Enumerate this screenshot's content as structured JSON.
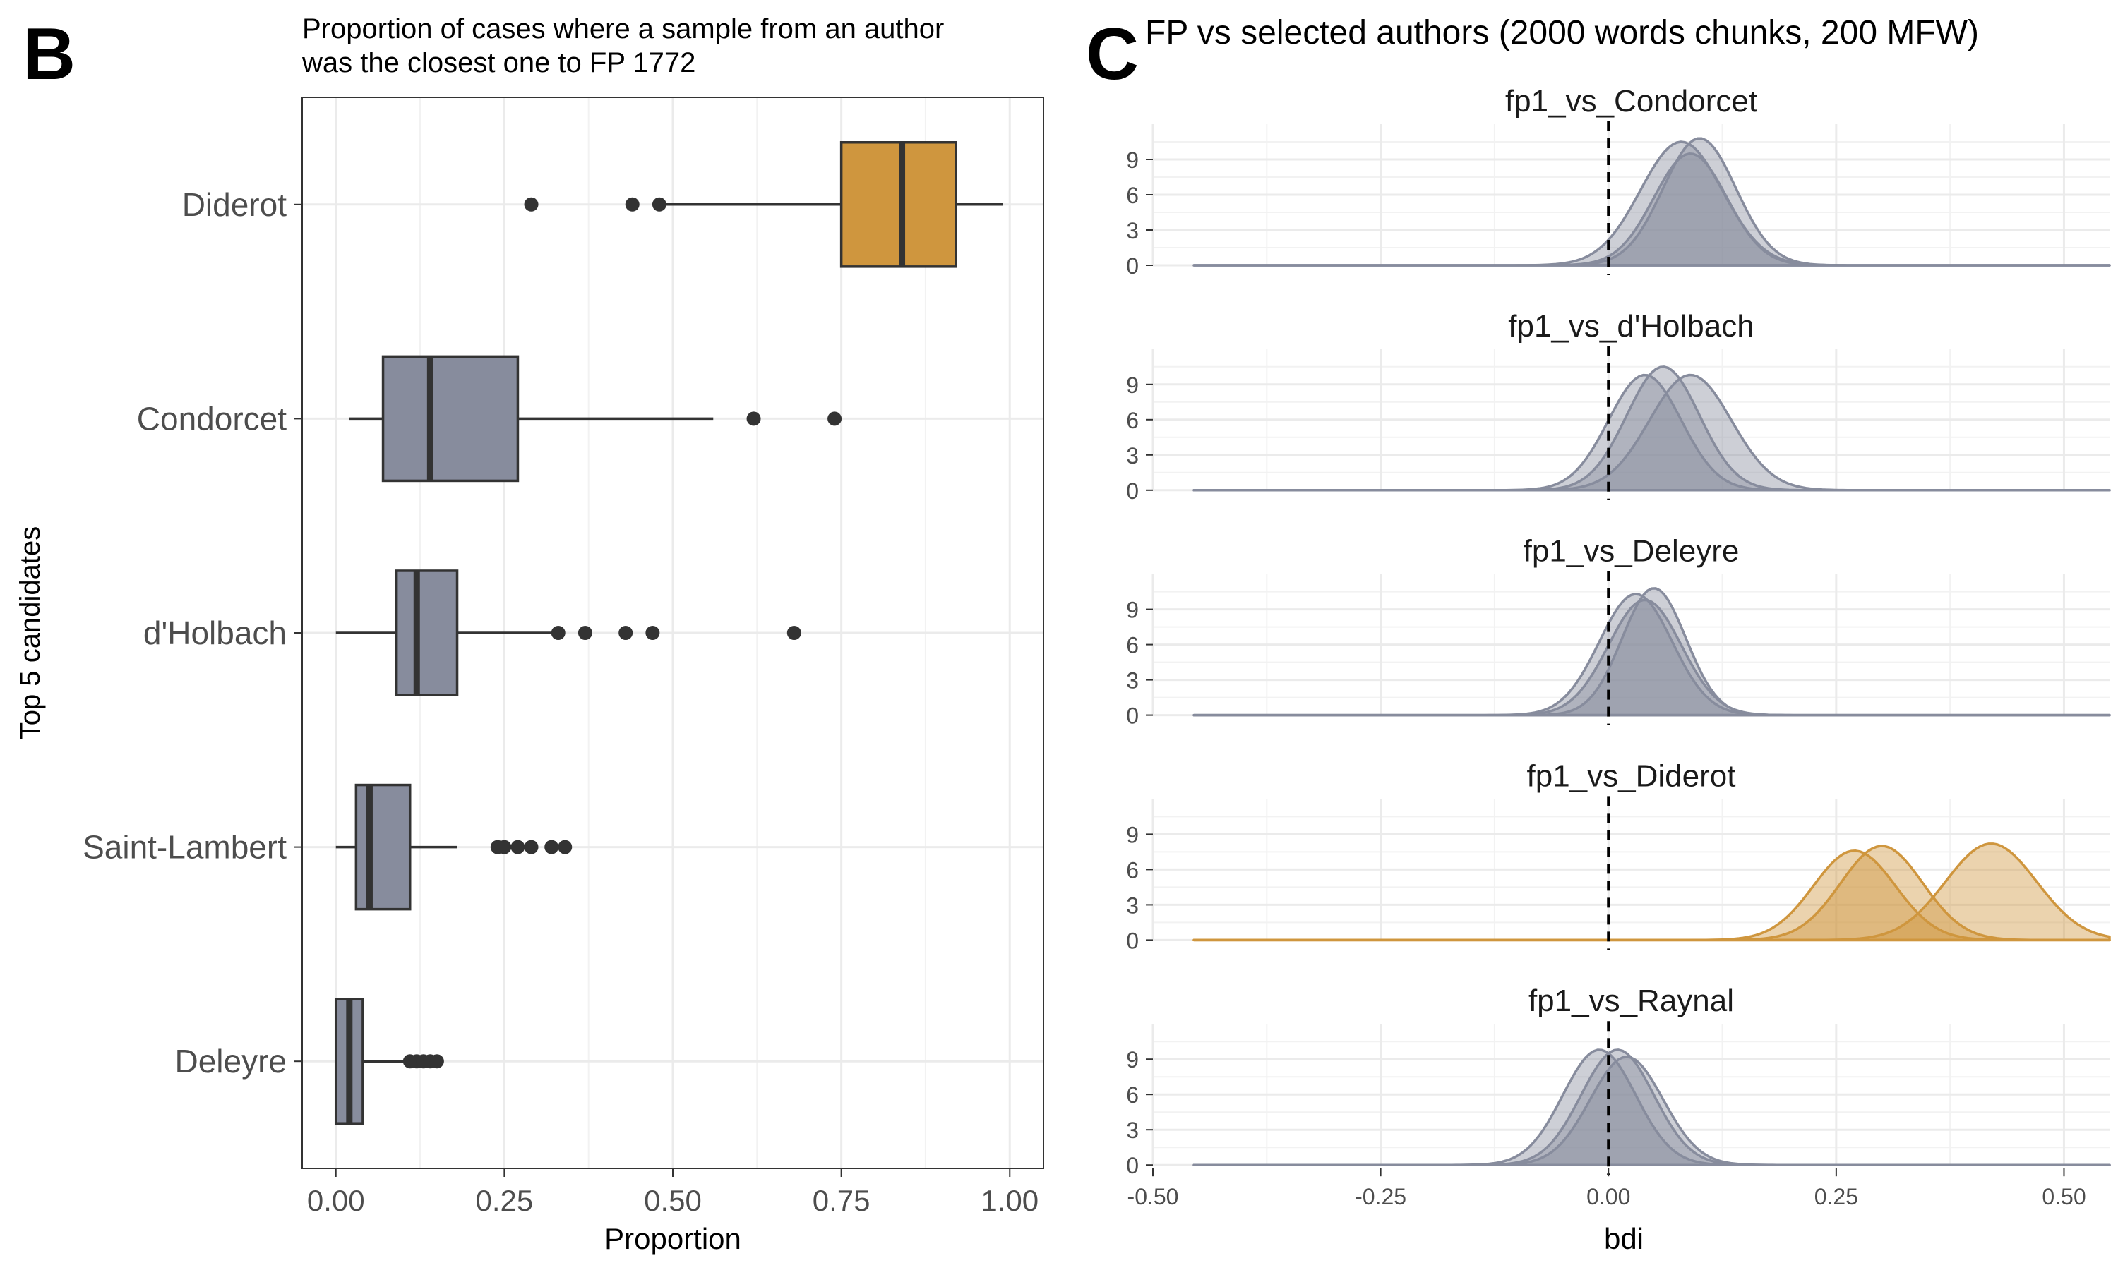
{
  "panel_letters": {
    "left": "B",
    "right": "C"
  },
  "chart_data": [
    {
      "type": "boxplot",
      "title": "Proportion of cases where a sample from an author\nwas the closest one to FP 1772",
      "xlabel": "Proportion",
      "ylabel": "Top 5 candidates",
      "xlim": [
        -0.05,
        1.05
      ],
      "x_ticks": [
        0,
        0.25,
        0.5,
        0.75,
        1
      ],
      "x_tick_labels": [
        "0.00",
        "0.25",
        "0.50",
        "0.75",
        "1.00"
      ],
      "grid": true,
      "categories": [
        "Diderot",
        "Condorcet",
        "d'Holbach",
        "Saint-Lambert",
        "Deleyre"
      ],
      "boxes": [
        {
          "label": "Diderot",
          "min": 0.48,
          "q1": 0.75,
          "median": 0.84,
          "q3": 0.92,
          "max": 0.99,
          "outliers": [
            0.29,
            0.44,
            0.48
          ],
          "color": "#CF963E"
        },
        {
          "label": "Condorcet",
          "min": 0.02,
          "q1": 0.07,
          "median": 0.14,
          "q3": 0.27,
          "max": 0.56,
          "outliers": [
            0.62,
            0.74
          ],
          "color": "#878C9D"
        },
        {
          "label": "d'Holbach",
          "min": 0.0,
          "q1": 0.09,
          "median": 0.12,
          "q3": 0.18,
          "max": 0.32,
          "outliers": [
            0.33,
            0.37,
            0.43,
            0.47,
            0.68
          ],
          "color": "#878C9D"
        },
        {
          "label": "Saint-Lambert",
          "min": 0.0,
          "q1": 0.03,
          "median": 0.05,
          "q3": 0.11,
          "max": 0.18,
          "outliers": [
            0.24,
            0.25,
            0.27,
            0.29,
            0.32,
            0.34
          ],
          "color": "#878C9D"
        },
        {
          "label": "Deleyre",
          "min": 0.0,
          "q1": 0.0,
          "median": 0.02,
          "q3": 0.04,
          "max": 0.1,
          "outliers": [
            0.11,
            0.12,
            0.13,
            0.14,
            0.15
          ],
          "color": "#878C9D"
        }
      ]
    },
    {
      "type": "area",
      "title": "FP vs selected authors (2000 words chunks, 200 MFW)",
      "xlabel": "bdi",
      "ylabel": "",
      "xlim": [
        -0.5,
        0.55
      ],
      "ylim": [
        0,
        12
      ],
      "x_ticks": [
        -0.5,
        -0.25,
        0,
        0.25,
        0.5
      ],
      "x_tick_labels": [
        "-0.50",
        "-0.25",
        "0.00",
        "0.25",
        "0.50"
      ],
      "y_ticks": [
        0,
        3,
        6,
        9
      ],
      "y_tick_labels": [
        "0",
        "3",
        "6",
        "9"
      ],
      "reference_line": {
        "x": 0,
        "style": "dashed"
      },
      "grid": true,
      "facets": [
        {
          "title": "fp1_vs_Condorcet",
          "color": "#878C9D",
          "curves": [
            {
              "mean": 0.08,
              "sd": 0.045,
              "peak": 10.5
            },
            {
              "mean": 0.1,
              "sd": 0.04,
              "peak": 10.8
            },
            {
              "mean": 0.09,
              "sd": 0.04,
              "peak": 9.5
            }
          ]
        },
        {
          "title": "fp1_vs_d'Holbach",
          "color": "#878C9D",
          "curves": [
            {
              "mean": 0.04,
              "sd": 0.04,
              "peak": 9.8
            },
            {
              "mean": 0.06,
              "sd": 0.04,
              "peak": 10.5
            },
            {
              "mean": 0.09,
              "sd": 0.045,
              "peak": 9.8
            }
          ]
        },
        {
          "title": "fp1_vs_Deleyre",
          "color": "#878C9D",
          "curves": [
            {
              "mean": 0.03,
              "sd": 0.04,
              "peak": 10.3
            },
            {
              "mean": 0.05,
              "sd": 0.035,
              "peak": 10.8
            },
            {
              "mean": 0.04,
              "sd": 0.04,
              "peak": 9.8
            }
          ]
        },
        {
          "title": "fp1_vs_Diderot",
          "color": "#CF963E",
          "curves": [
            {
              "mean": 0.27,
              "sd": 0.045,
              "peak": 7.6
            },
            {
              "mean": 0.3,
              "sd": 0.045,
              "peak": 8.0
            },
            {
              "mean": 0.42,
              "sd": 0.05,
              "peak": 8.2
            }
          ]
        },
        {
          "title": "fp1_vs_Raynal",
          "color": "#878C9D",
          "curves": [
            {
              "mean": -0.01,
              "sd": 0.04,
              "peak": 9.8
            },
            {
              "mean": 0.01,
              "sd": 0.04,
              "peak": 9.8
            },
            {
              "mean": 0.02,
              "sd": 0.04,
              "peak": 9.2
            }
          ]
        }
      ]
    }
  ]
}
